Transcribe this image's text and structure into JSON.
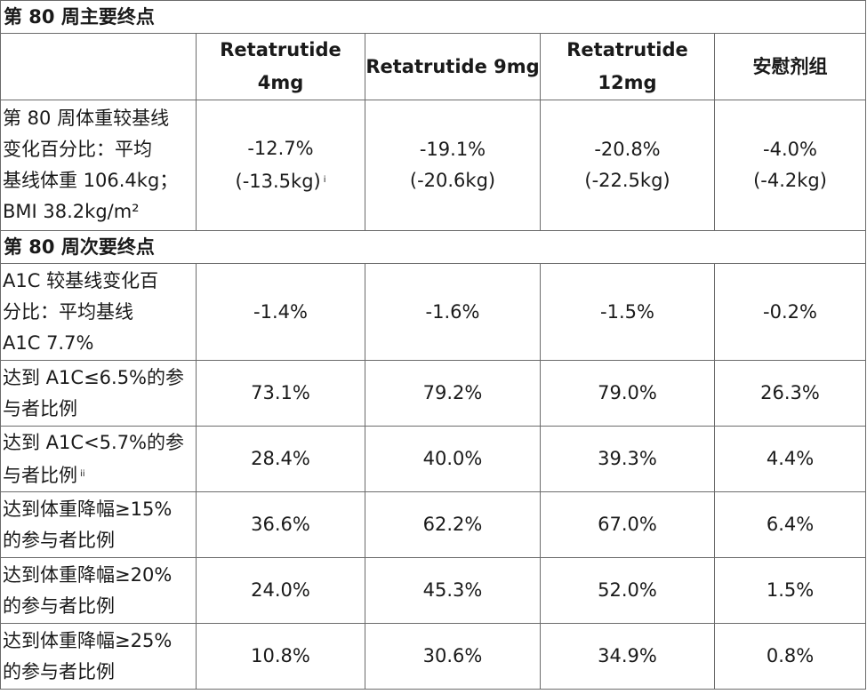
{
  "section_primary": "第 80 周主要终点",
  "section_secondary": "第 80 周次要终点",
  "columns": [
    "Retatrutide 4mg",
    "Retatrutide 9mg",
    "Retatrutide 12mg",
    "安慰剂组"
  ],
  "primary_row": {
    "label_lines": [
      "第 80 周体重较基线",
      "变化百分比：平均",
      "基线体重 106.4kg；",
      "BMI 38.2kg/m²"
    ],
    "values": [
      {
        "pct": "-12.7%",
        "kg": "(-13.5kg)",
        "footnote": "i"
      },
      {
        "pct": "-19.1%",
        "kg": "(-20.6kg)",
        "footnote": ""
      },
      {
        "pct": "-20.8%",
        "kg": "(-22.5kg)",
        "footnote": ""
      },
      {
        "pct": "-4.0%",
        "kg": "(-4.2kg)",
        "footnote": ""
      }
    ]
  },
  "secondary_rows": [
    {
      "label_lines": [
        "A1C 较基线变化百",
        "分比：平均基线",
        "A1C 7.7%"
      ],
      "footnote": "",
      "values": [
        "-1.4%",
        "-1.6%",
        "-1.5%",
        "-0.2%"
      ]
    },
    {
      "label_lines": [
        "达到 A1C≤6.5%的参",
        "与者比例"
      ],
      "footnote": "",
      "values": [
        "73.1%",
        "79.2%",
        "79.0%",
        "26.3%"
      ]
    },
    {
      "label_lines": [
        "达到 A1C<5.7%的参",
        "与者比例"
      ],
      "footnote": "ii",
      "values": [
        "28.4%",
        "40.0%",
        "39.3%",
        "4.4%"
      ]
    },
    {
      "label_lines": [
        "达到体重降幅≥15%",
        "的参与者比例"
      ],
      "footnote": "",
      "values": [
        "36.6%",
        "62.2%",
        "67.0%",
        "6.4%"
      ]
    },
    {
      "label_lines": [
        "达到体重降幅≥20%",
        "的参与者比例"
      ],
      "footnote": "",
      "values": [
        "24.0%",
        "45.3%",
        "52.0%",
        "1.5%"
      ]
    },
    {
      "label_lines": [
        "达到体重降幅≥25%",
        "的参与者比例"
      ],
      "footnote": "",
      "values": [
        "10.8%",
        "30.6%",
        "34.9%",
        "0.8%"
      ]
    }
  ]
}
